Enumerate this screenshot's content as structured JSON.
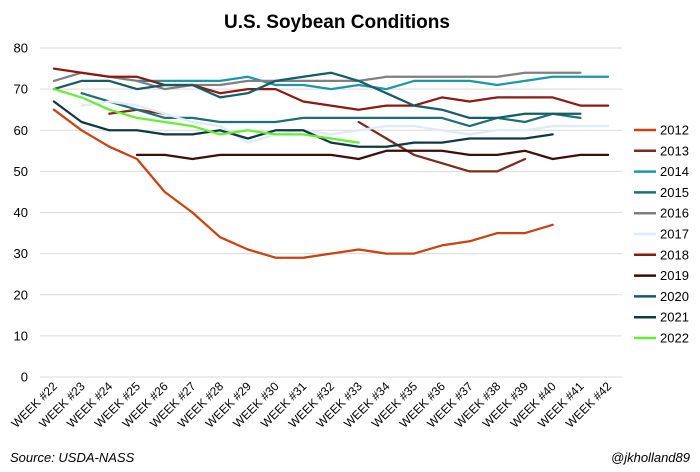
{
  "chart_data": {
    "type": "line",
    "title": "U.S. Soybean Conditions",
    "xlabel": "",
    "ylabel": "",
    "ylim": [
      0,
      80
    ],
    "yticks": [
      0,
      10,
      20,
      30,
      40,
      50,
      60,
      70,
      80
    ],
    "grid": true,
    "legend_position": "right",
    "categories": [
      "WEEK #22",
      "WEEK #23",
      "WEEK #24",
      "WEEK #25",
      "WEEK #26",
      "WEEK #27",
      "WEEK #28",
      "WEEK #29",
      "WEEK #30",
      "WEEK #31",
      "WEEK #32",
      "WEEK #33",
      "WEEK #34",
      "WEEK #35",
      "WEEK #36",
      "WEEK #37",
      "WEEK #38",
      "WEEK #39",
      "WEEK #40",
      "WEEK #41",
      "WEEK #42"
    ],
    "series": [
      {
        "name": "2012",
        "color": "#c9420f",
        "values": [
          65,
          60,
          56,
          53,
          45,
          40,
          34,
          31,
          29,
          29,
          30,
          31,
          30,
          30,
          32,
          33,
          35,
          35,
          37,
          null,
          null
        ]
      },
      {
        "name": "2013",
        "color": "#7a2d1c",
        "values": [
          null,
          null,
          64,
          65,
          64,
          null,
          null,
          null,
          null,
          null,
          null,
          62,
          58,
          54,
          52,
          50,
          50,
          53,
          null,
          null,
          null
        ]
      },
      {
        "name": "2014",
        "color": "#1b98a8",
        "values": [
          null,
          null,
          null,
          72,
          72,
          72,
          72,
          73,
          71,
          71,
          70,
          71,
          70,
          72,
          72,
          72,
          71,
          72,
          73,
          73,
          73
        ]
      },
      {
        "name": "2015",
        "color": "#1f6f7a",
        "values": [
          null,
          69,
          67,
          65,
          63,
          63,
          62,
          62,
          62,
          63,
          63,
          63,
          63,
          63,
          63,
          61,
          63,
          62,
          64,
          63,
          null
        ]
      },
      {
        "name": "2016",
        "color": "#7f7f7f",
        "values": [
          72,
          74,
          73,
          72,
          70,
          71,
          71,
          72,
          72,
          72,
          72,
          72,
          73,
          73,
          73,
          73,
          73,
          74,
          74,
          74,
          null
        ]
      },
      {
        "name": "2017",
        "color": "#ddebf7",
        "values": [
          null,
          66,
          67,
          66,
          64,
          62,
          61,
          57,
          59,
          60,
          59,
          60,
          61,
          61,
          60,
          59,
          60,
          60,
          61,
          61,
          61
        ]
      },
      {
        "name": "2018",
        "color": "#8b1a10",
        "values": [
          75,
          74,
          73,
          73,
          71,
          71,
          69,
          70,
          70,
          67,
          66,
          65,
          66,
          66,
          68,
          67,
          68,
          68,
          68,
          66,
          66
        ]
      },
      {
        "name": "2019",
        "color": "#3d0d0a",
        "values": [
          null,
          null,
          null,
          54,
          54,
          53,
          54,
          54,
          54,
          54,
          54,
          53,
          55,
          55,
          55,
          54,
          54,
          55,
          53,
          54,
          54
        ]
      },
      {
        "name": "2020",
        "color": "#155c66",
        "values": [
          70,
          72,
          72,
          70,
          71,
          71,
          68,
          69,
          72,
          73,
          74,
          72,
          69,
          66,
          65,
          63,
          63,
          64,
          64,
          64,
          null
        ]
      },
      {
        "name": "2021",
        "color": "#0d3a42",
        "values": [
          67,
          62,
          60,
          60,
          59,
          59,
          60,
          58,
          60,
          60,
          57,
          56,
          56,
          57,
          57,
          58,
          58,
          58,
          59,
          null,
          null
        ]
      },
      {
        "name": "2022",
        "color": "#66ee33",
        "values": [
          70,
          68,
          65,
          63,
          62,
          61,
          59,
          60,
          59,
          59,
          58,
          57,
          null,
          null,
          null,
          null,
          null,
          null,
          null,
          null,
          null
        ]
      }
    ]
  },
  "footer": {
    "source": "Source: USDA-NASS",
    "credit": "@jkholland89"
  }
}
